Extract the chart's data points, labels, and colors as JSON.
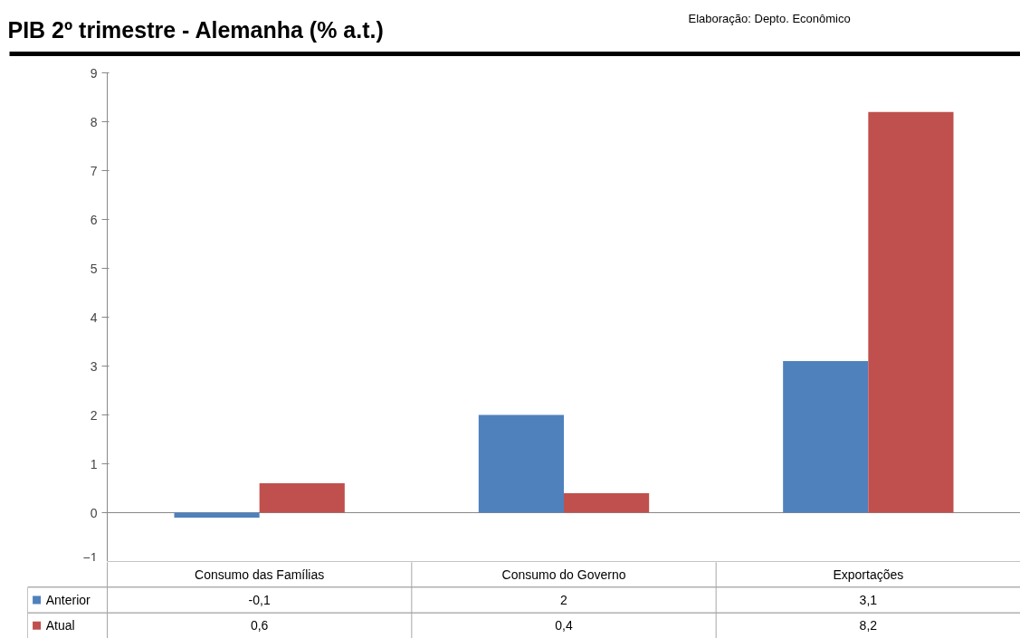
{
  "chart_data": {
    "type": "bar",
    "title": "PIB 2º trimestre - Alemanha (% a.t.)",
    "annotations": [
      "Elaboração: Depto. Econômico"
    ],
    "categories": [
      "Consumo das Famílias",
      "Consumo do Governo",
      "Exportações"
    ],
    "series": [
      {
        "name": "Anterior",
        "color": "#4f81bd",
        "values": [
          -0.1,
          2,
          3.1
        ],
        "value_labels": [
          "-0,1",
          "2",
          "3,1"
        ]
      },
      {
        "name": "Atual",
        "color": "#c0504d",
        "values": [
          0.6,
          0.4,
          8.2
        ],
        "value_labels": [
          "0,6",
          "0,4",
          "8,2"
        ]
      }
    ],
    "ylim": [
      -1,
      9
    ],
    "yticks": [
      -1,
      0,
      1,
      2,
      3,
      4,
      5,
      6,
      7,
      8,
      9
    ],
    "legend": "bottom"
  }
}
